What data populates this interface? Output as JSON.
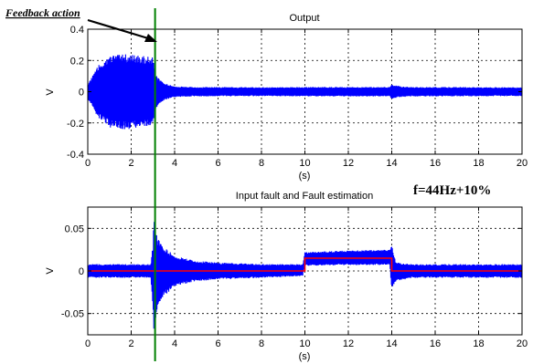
{
  "chart_data": [
    {
      "type": "line",
      "title": "Output",
      "xlabel": "(s)",
      "ylabel": "V",
      "xlim": [
        0,
        20
      ],
      "ylim": [
        -0.4,
        0.4
      ],
      "xticks": [
        "0",
        "2",
        "4",
        "6",
        "8",
        "10",
        "12",
        "14",
        "16",
        "18",
        "20"
      ],
      "yticks": [
        "0.4",
        "0.2",
        "0",
        "-0.2",
        "-0.4"
      ],
      "grid": true,
      "series": [
        {
          "color": "#0000ff",
          "style": "dense oscillation envelope",
          "x": [
            0,
            0.5,
            1.0,
            1.5,
            2.0,
            2.5,
            3.0,
            3.1,
            3.3,
            3.6,
            4.0,
            5.0,
            6.0,
            8.0,
            10.0,
            12.0,
            13.9,
            14.0,
            14.4,
            15.0,
            17.0,
            20.0
          ],
          "upper": [
            0.05,
            0.17,
            0.23,
            0.24,
            0.24,
            0.23,
            0.22,
            0.12,
            0.08,
            0.05,
            0.035,
            0.03,
            0.03,
            0.028,
            0.03,
            0.03,
            0.03,
            0.045,
            0.035,
            0.03,
            0.03,
            0.028
          ],
          "lower": [
            -0.05,
            -0.17,
            -0.23,
            -0.24,
            -0.24,
            -0.23,
            -0.22,
            -0.12,
            -0.08,
            -0.05,
            -0.035,
            -0.03,
            -0.03,
            -0.028,
            -0.03,
            -0.03,
            -0.03,
            -0.045,
            -0.035,
            -0.03,
            -0.03,
            -0.028
          ]
        }
      ]
    },
    {
      "type": "line",
      "title": "Input fault and Fault estimation",
      "xlabel": "(s)",
      "ylabel": "V",
      "xlim": [
        0,
        20
      ],
      "ylim": [
        -0.075,
        0.075
      ],
      "xticks": [
        "0",
        "2",
        "4",
        "6",
        "8",
        "10",
        "12",
        "14",
        "16",
        "18",
        "20"
      ],
      "yticks": [
        "0.05",
        "0",
        "-0.05"
      ],
      "grid": true,
      "series": [
        {
          "color": "#0000ff",
          "style": "dense oscillation envelope (fault estimation)",
          "x": [
            0,
            1.0,
            2.0,
            2.9,
            3.0,
            3.05,
            3.2,
            3.5,
            4.0,
            5.0,
            6.0,
            8.0,
            9.9,
            10.0,
            12.0,
            13.9,
            14.0,
            14.2,
            15.0,
            17.0,
            20.0
          ],
          "upper": [
            0.008,
            0.008,
            0.008,
            0.008,
            0.03,
            0.065,
            0.04,
            0.028,
            0.018,
            0.012,
            0.01,
            0.008,
            0.008,
            0.022,
            0.024,
            0.025,
            0.03,
            0.01,
            0.008,
            0.008,
            0.008
          ],
          "lower": [
            -0.008,
            -0.008,
            -0.008,
            -0.008,
            -0.045,
            -0.075,
            -0.045,
            -0.03,
            -0.018,
            -0.012,
            -0.01,
            -0.008,
            -0.006,
            0.006,
            0.007,
            0.007,
            -0.02,
            -0.012,
            -0.008,
            -0.008,
            -0.008
          ]
        },
        {
          "color": "#ff0000",
          "style": "step line (input fault)",
          "x": [
            0,
            10,
            10,
            14,
            14,
            20
          ],
          "y": [
            0,
            0,
            0.015,
            0.015,
            0,
            0
          ]
        }
      ]
    }
  ],
  "annotations": {
    "feedback_label": "Feedback action",
    "feedback_time": 3.1,
    "feedback_color": "#008000",
    "frequency_label": "f=44Hz+10%"
  }
}
